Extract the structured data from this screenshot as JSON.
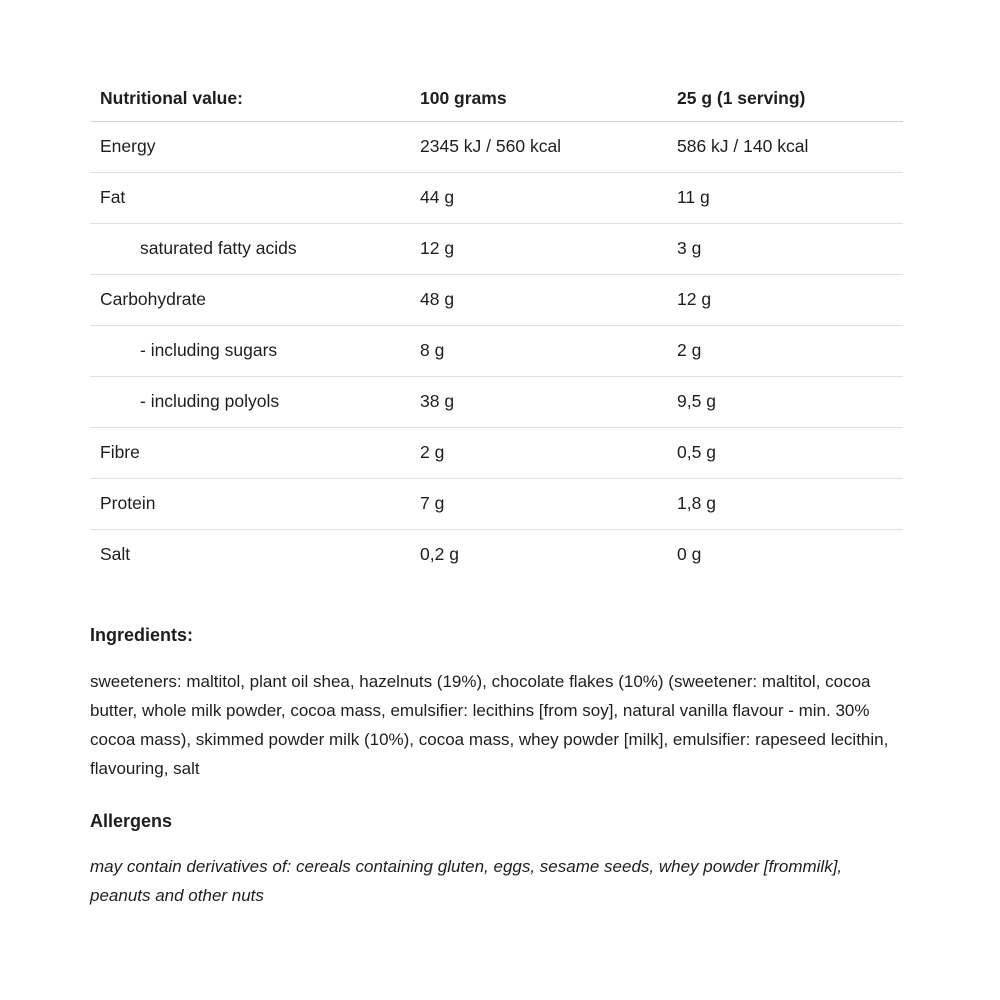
{
  "page": {
    "background_color": "#ffffff",
    "text_color": "#1e1e1e",
    "divider_color": "#e0e0e0",
    "header_divider_color": "#d2d2d2"
  },
  "nutrition_table": {
    "headers": [
      "Nutritional value:",
      "100 grams",
      "25 g (1 serving)"
    ],
    "rows": [
      {
        "label": "Energy",
        "per_100g": "2345 kJ / 560 kcal",
        "per_serving": "586 kJ / 140 kcal",
        "indent": false
      },
      {
        "label": "Fat",
        "per_100g": "44 g",
        "per_serving": "11 g",
        "indent": false
      },
      {
        "label": "saturated fatty acids",
        "per_100g": "12 g",
        "per_serving": "3 g",
        "indent": true
      },
      {
        "label": "Carbohydrate",
        "per_100g": "48 g",
        "per_serving": "12 g",
        "indent": false
      },
      {
        "label": "- including sugars",
        "per_100g": "8 g",
        "per_serving": "2 g",
        "indent": true
      },
      {
        "label": "- including polyols",
        "per_100g": "38 g",
        "per_serving": "9,5 g",
        "indent": true
      },
      {
        "label": "Fibre",
        "per_100g": "2 g",
        "per_serving": "0,5 g",
        "indent": false
      },
      {
        "label": "Protein",
        "per_100g": "7 g",
        "per_serving": "1,8 g",
        "indent": false
      },
      {
        "label": "Salt",
        "per_100g": "0,2 g",
        "per_serving": "0 g",
        "indent": false
      }
    ]
  },
  "ingredients": {
    "heading": "Ingredients:",
    "text": "sweeteners: maltitol, plant oil shea, hazelnuts (19%), chocolate flakes (10%) (sweetener: maltitol, cocoa butter, whole milk powder, cocoa mass, emulsifier: lecithins [from soy], natural vanilla flavour - min. 30% cocoa mass), skimmed powder milk (10%), cocoa mass, whey powder [milk], emulsifier: rapeseed lecithin, flavouring, salt"
  },
  "allergens": {
    "heading": "Allergens",
    "text": "may contain derivatives of: cereals containing gluten, eggs, sesame seeds, whey powder [frommilk], peanuts and other nuts"
  }
}
